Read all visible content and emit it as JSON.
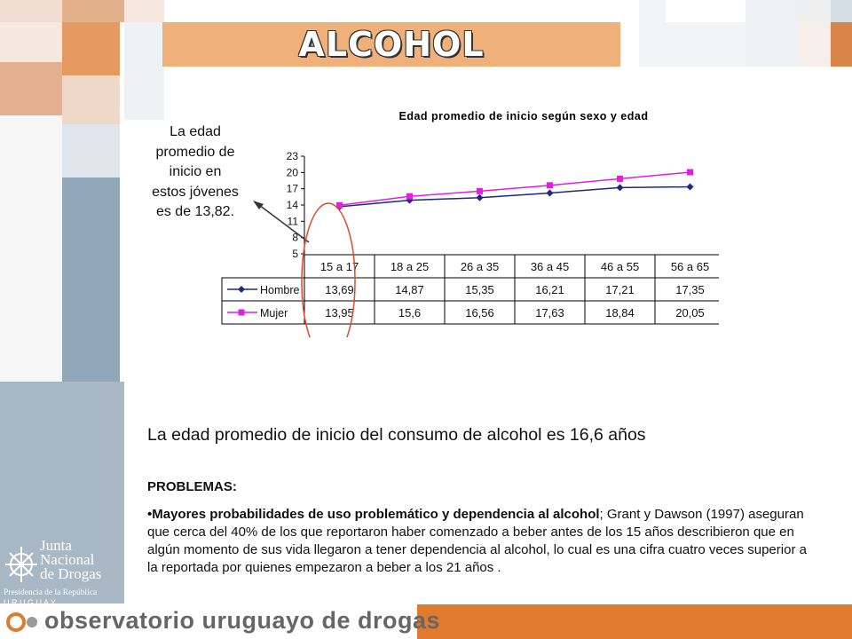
{
  "title": "ALCOHOL",
  "callout": "La edad promedio de inicio en estos jóvenes es de 13,82.",
  "chart_data": {
    "type": "line",
    "title": "Edad promedio de inicio según sexo y edad",
    "categories": [
      "15 a 17",
      "18 a 25",
      "26 a 35",
      "36 a 45",
      "46 a 55",
      "56 a 65"
    ],
    "series": [
      {
        "name": "Hombre",
        "values": [
          13.69,
          14.87,
          15.35,
          16.21,
          17.21,
          17.35
        ],
        "labels": [
          "13,69",
          "14,87",
          "15,35",
          "16,21",
          "17,21",
          "17,35"
        ],
        "color": "#1f2a7a",
        "marker": "diamond"
      },
      {
        "name": "Mujer",
        "values": [
          13.95,
          15.6,
          16.56,
          17.63,
          18.84,
          20.05
        ],
        "labels": [
          "13,95",
          "15,6",
          "16,56",
          "17,63",
          "18,84",
          "20,05"
        ],
        "color": "#e020e0",
        "marker": "square"
      }
    ],
    "yticks": [
      5,
      8,
      11,
      14,
      17,
      20,
      23
    ],
    "ylim": [
      5,
      23
    ],
    "legend": "right",
    "data_table": true
  },
  "main_text": "La edad promedio de inicio del consumo de alcohol es 16,6 años",
  "problems_heading": "PROBLEMAS:",
  "paragraph_bold": "•Mayores probabilidades de uso problemático y dependencia al alcohol",
  "paragraph_rest": "; Grant y Dawson (1997) aseguran que cerca del 40% de los que reportaron haber comenzado a beber antes de los 15 años describieron que en algún momento de sus vida llegaron a tener dependencia al alcohol, lo cual es una cifra cuatro veces superior a la reportada por quienes empezaron a beber a  los 21 años .",
  "logo": {
    "line1": "Junta",
    "line2": "Nacional",
    "line3": "de Drogas",
    "line4": "Presidencia de la República",
    "line5": "U R U G U A Y"
  },
  "footer": "observatorio uruguayo de drogas",
  "colors": {
    "accent_orange": "#e07a2e",
    "title_bar": "#f0b07a",
    "steel_blue": "#8fa7b8",
    "ellipse": "#e04a2a"
  }
}
